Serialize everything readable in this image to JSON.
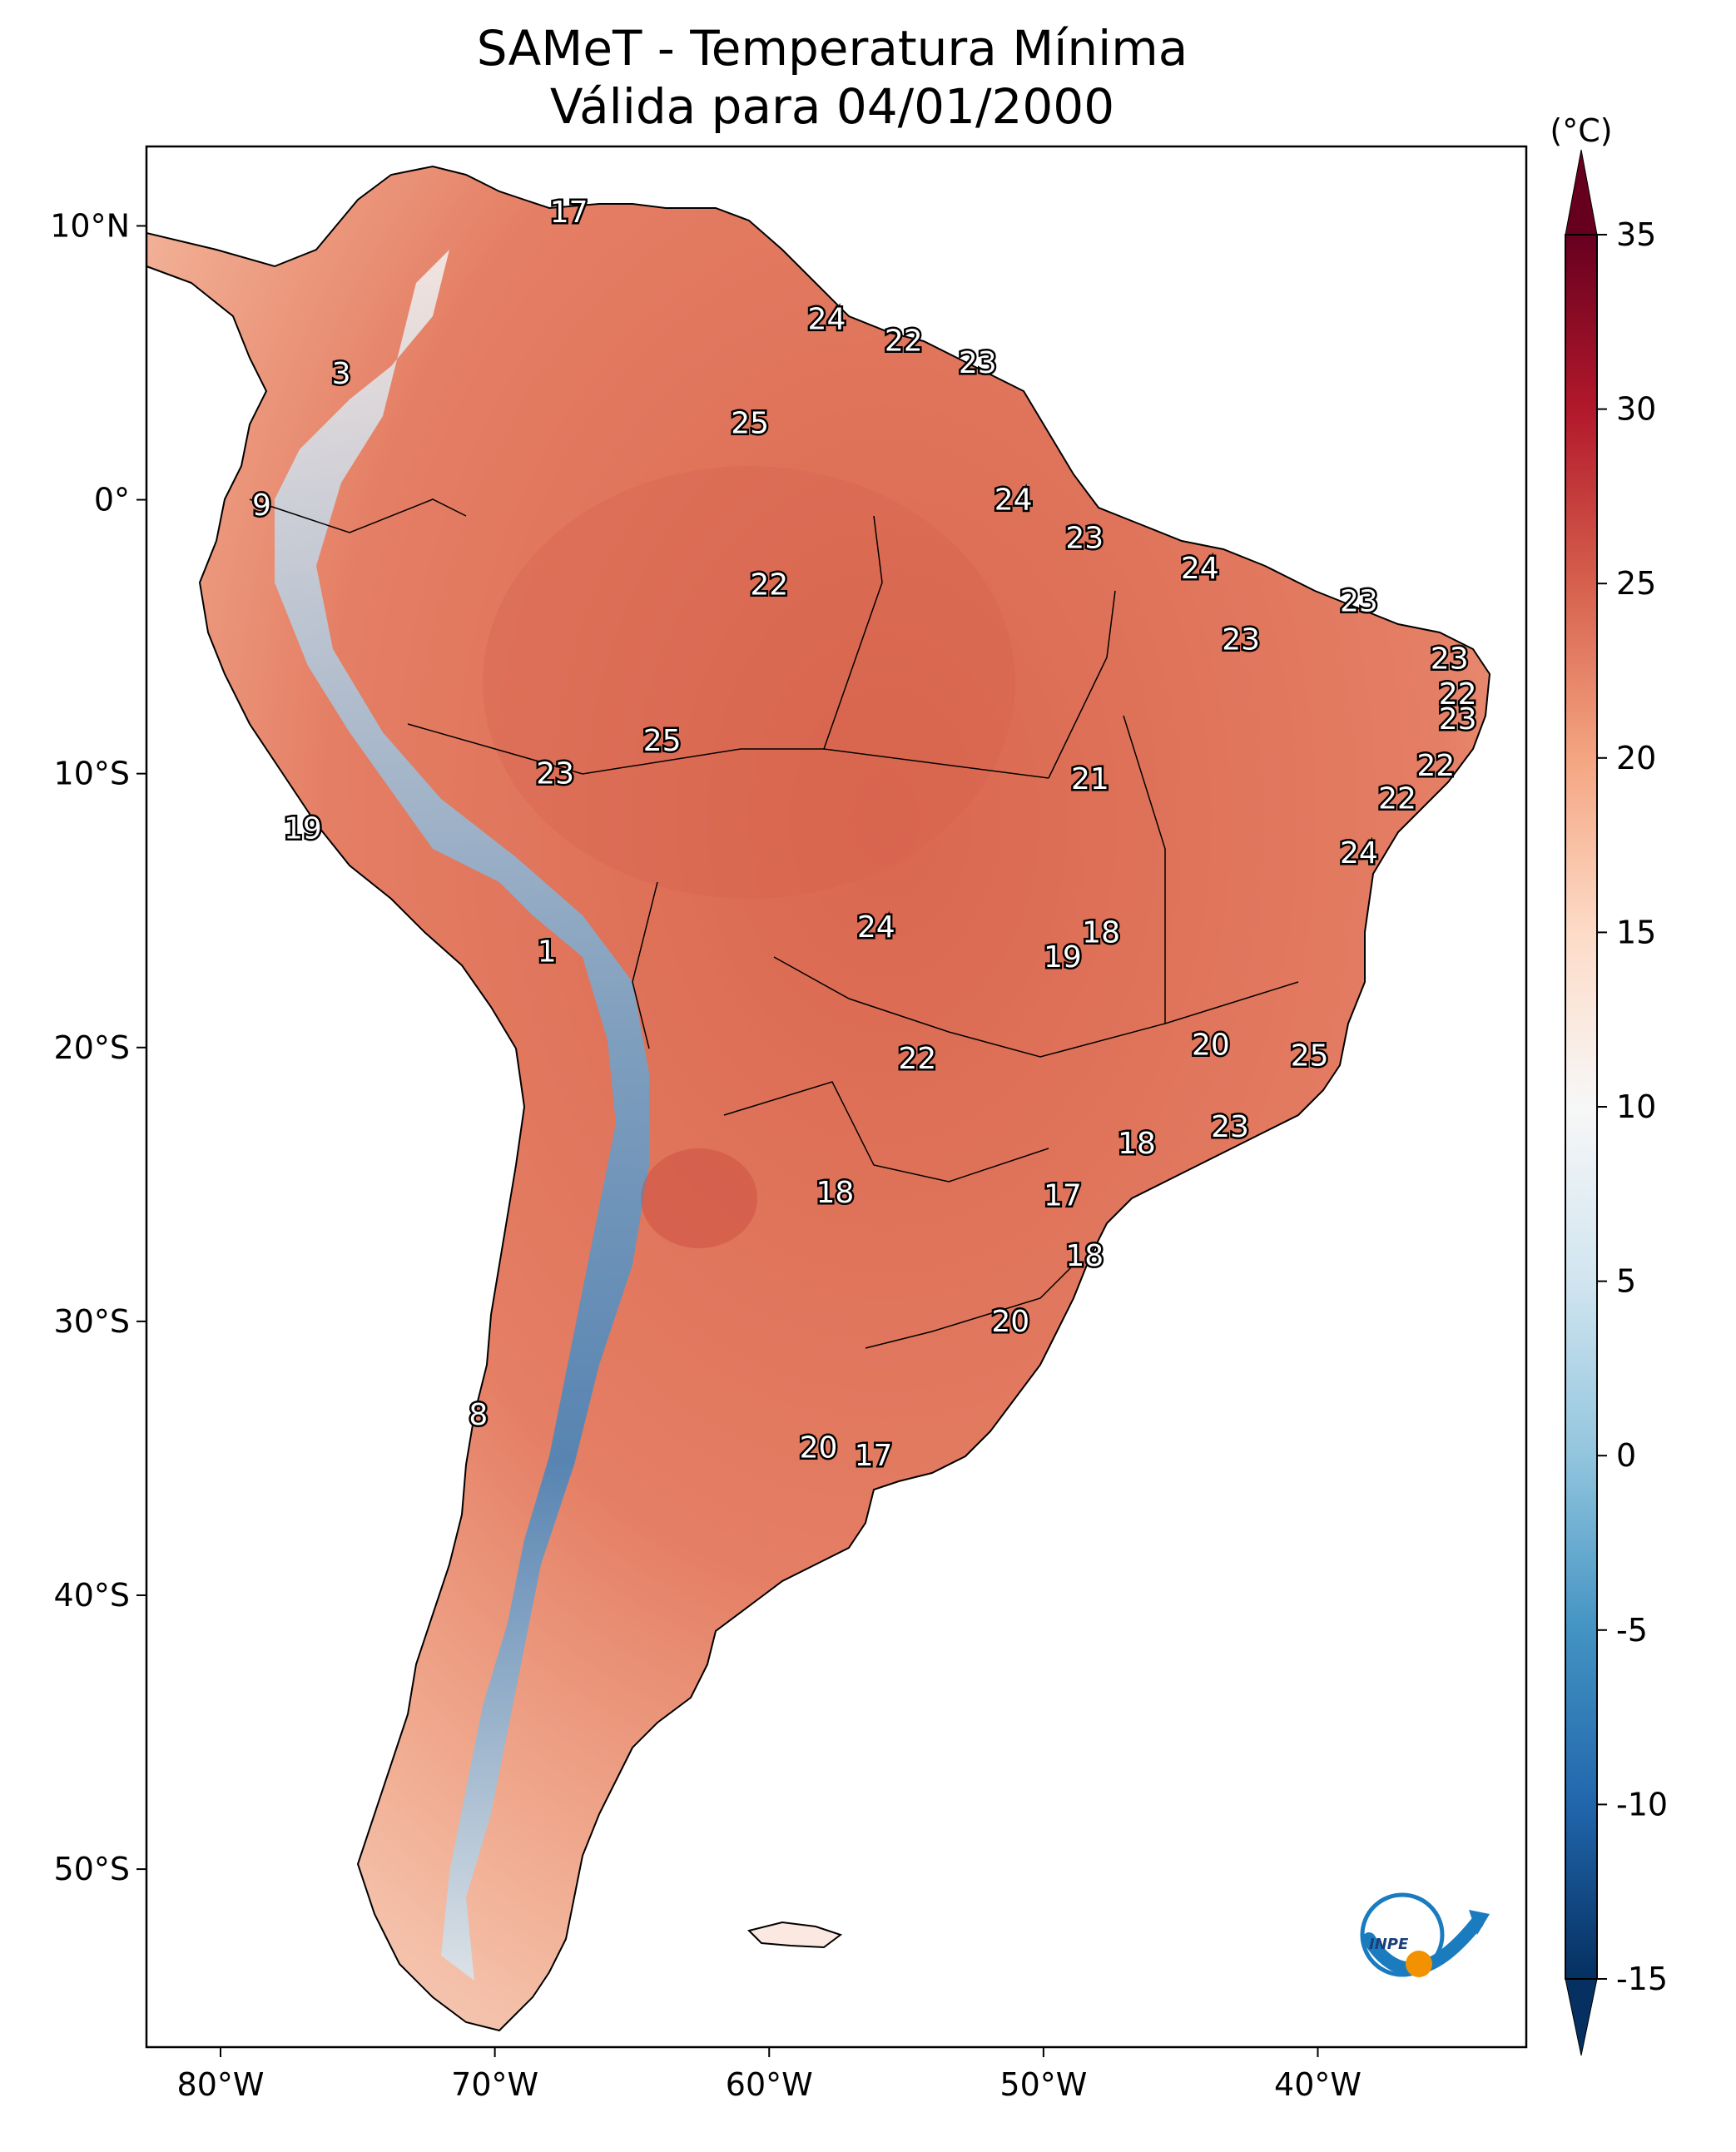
{
  "title": {
    "line1": "SAMeT - Temperatura Mínima",
    "line2": "Válida para 04/01/2000"
  },
  "map": {
    "lon_ticks": [
      "80°W",
      "70°W",
      "60°W",
      "50°W",
      "40°W"
    ],
    "lat_ticks": [
      "10°N",
      "0°",
      "10°S",
      "20°S",
      "30°S",
      "40°S",
      "50°S"
    ],
    "extent": {
      "lon": [
        -82.7,
        -32.4
      ],
      "lat": [
        -56.5,
        12.9
      ]
    }
  },
  "colorbar": {
    "unit": "(°C)",
    "ticks": [
      "35",
      "30",
      "25",
      "20",
      "15",
      "10",
      "5",
      "0",
      "-5",
      "-10",
      "-15"
    ],
    "range": [
      -15,
      35
    ],
    "colors": [
      "#053061",
      "#2166ac",
      "#4393c3",
      "#92c5de",
      "#d1e5f0",
      "#f7f7f7",
      "#fddbc7",
      "#f4a582",
      "#d6604d",
      "#b2182b",
      "#67001f"
    ]
  },
  "city_values": [
    {
      "label": "17",
      "lon": -67.3,
      "lat": 10.5
    },
    {
      "label": "24",
      "lon": -57.9,
      "lat": 6.6
    },
    {
      "label": "22",
      "lon": -55.1,
      "lat": 5.8
    },
    {
      "label": "23",
      "lon": -52.4,
      "lat": 5.0
    },
    {
      "label": "3",
      "lon": -75.6,
      "lat": 4.6
    },
    {
      "label": "25",
      "lon": -60.7,
      "lat": 2.8
    },
    {
      "label": "24",
      "lon": -51.1,
      "lat": 0.0
    },
    {
      "label": "9",
      "lon": -78.5,
      "lat": -0.2
    },
    {
      "label": "23",
      "lon": -48.5,
      "lat": -1.4
    },
    {
      "label": "24",
      "lon": -44.3,
      "lat": -2.5
    },
    {
      "label": "22",
      "lon": -60.0,
      "lat": -3.1
    },
    {
      "label": "23",
      "lon": -38.5,
      "lat": -3.7
    },
    {
      "label": "23",
      "lon": -42.8,
      "lat": -5.1
    },
    {
      "label": "23",
      "lon": -35.2,
      "lat": -5.8
    },
    {
      "label": "22",
      "lon": -34.9,
      "lat": -7.1
    },
    {
      "label": "23",
      "lon": -34.9,
      "lat": -8.0
    },
    {
      "label": "25",
      "lon": -63.9,
      "lat": -8.8
    },
    {
      "label": "22",
      "lon": -35.7,
      "lat": -9.7
    },
    {
      "label": "23",
      "lon": -67.8,
      "lat": -10.0
    },
    {
      "label": "21",
      "lon": -48.3,
      "lat": -10.2
    },
    {
      "label": "22",
      "lon": -37.1,
      "lat": -10.9
    },
    {
      "label": "19",
      "lon": -77.0,
      "lat": -12.0
    },
    {
      "label": "24",
      "lon": -38.5,
      "lat": -12.9
    },
    {
      "label": "24",
      "lon": -56.1,
      "lat": -15.6
    },
    {
      "label": "18",
      "lon": -47.9,
      "lat": -15.8
    },
    {
      "label": "19",
      "lon": -49.3,
      "lat": -16.7
    },
    {
      "label": "1",
      "lon": -68.1,
      "lat": -16.5
    },
    {
      "label": "20",
      "lon": -43.9,
      "lat": -19.9
    },
    {
      "label": "25",
      "lon": -40.3,
      "lat": -20.3
    },
    {
      "label": "22",
      "lon": -54.6,
      "lat": -20.4
    },
    {
      "label": "23",
      "lon": -43.2,
      "lat": -22.9
    },
    {
      "label": "18",
      "lon": -46.6,
      "lat": -23.5
    },
    {
      "label": "18",
      "lon": -57.6,
      "lat": -25.3
    },
    {
      "label": "17",
      "lon": -49.3,
      "lat": -25.4
    },
    {
      "label": "18",
      "lon": -48.5,
      "lat": -27.6
    },
    {
      "label": "20",
      "lon": -51.2,
      "lat": -30.0
    },
    {
      "label": "8",
      "lon": -70.6,
      "lat": -33.4
    },
    {
      "label": "20",
      "lon": -58.2,
      "lat": -34.6
    },
    {
      "label": "17",
      "lon": -56.2,
      "lat": -34.9
    }
  ],
  "logo": {
    "text": "INPE"
  }
}
